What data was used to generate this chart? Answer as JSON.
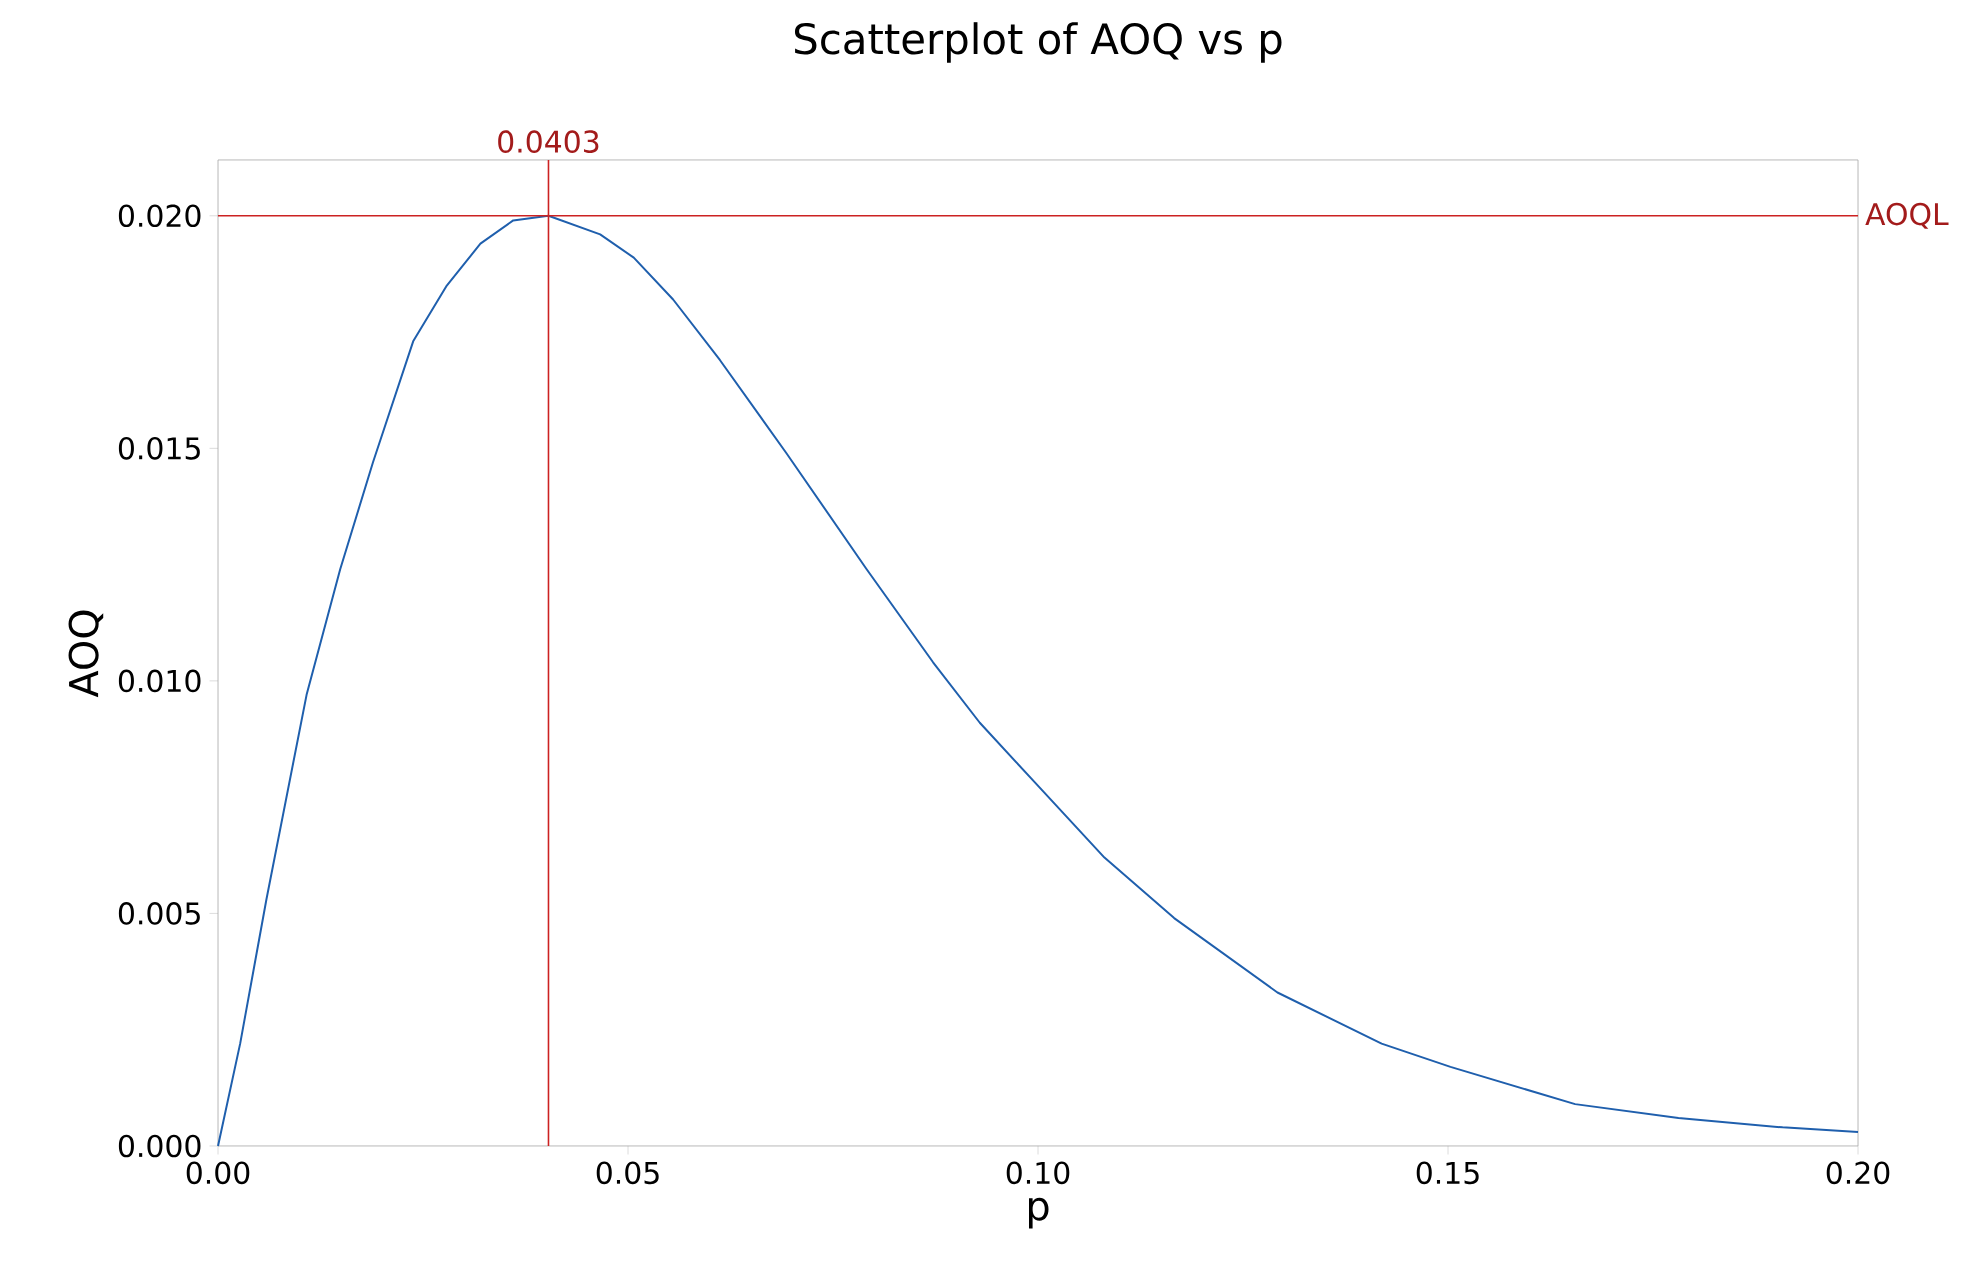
{
  "chart_data": {
    "type": "line",
    "title": "Scatterplot of AOQ vs p",
    "xlabel": "p",
    "ylabel": "AOQ",
    "x": [
      0,
      0.0027,
      0.0059,
      0.0108,
      0.0149,
      0.0189,
      0.0238,
      0.0279,
      0.032,
      0.036,
      0.0403,
      0.0466,
      0.0507,
      0.0555,
      0.0612,
      0.0693,
      0.0791,
      0.0872,
      0.0929,
      0.0997,
      0.1081,
      0.1166,
      0.1292,
      0.1419,
      0.1503,
      0.1655,
      0.1781,
      0.1908,
      0.2
    ],
    "series": [
      {
        "color": "#1f5fad",
        "values": [
          0,
          0.0022,
          0.0053,
          0.0097,
          0.0124,
          0.0147,
          0.0173,
          0.0185,
          0.0194,
          0.0199,
          0.02,
          0.0196,
          0.0191,
          0.0182,
          0.0169,
          0.0149,
          0.0124,
          0.0104,
          0.0091,
          0.0078,
          0.0062,
          0.0049,
          0.0033,
          0.0022,
          0.0017,
          0.0009,
          0.0006,
          0.0004,
          0.0003
        ]
      }
    ],
    "xlim": [
      0,
      0.2
    ],
    "ylim": [
      0,
      0.0212
    ],
    "xticks": [
      {
        "value": 0,
        "label": "0.00"
      },
      {
        "value": 0.05,
        "label": "0.05"
      },
      {
        "value": 0.1,
        "label": "0.10"
      },
      {
        "value": 0.15,
        "label": "0.15"
      },
      {
        "value": 0.2,
        "label": "0.20"
      }
    ],
    "yticks": [
      {
        "value": 0,
        "label": "0.000"
      },
      {
        "value": 0.005,
        "label": "0.005"
      },
      {
        "value": 0.01,
        "label": "0.010"
      },
      {
        "value": 0.015,
        "label": "0.015"
      },
      {
        "value": 0.02,
        "label": "0.020"
      }
    ],
    "ref_lines": [
      {
        "axis": "x",
        "value": 0.0403,
        "label": "0.0403",
        "color": "#cc2222"
      },
      {
        "axis": "y",
        "value": 0.02,
        "label": "AOQL",
        "color": "#cc2222"
      }
    ],
    "marker": "none",
    "line_style": "solid"
  }
}
